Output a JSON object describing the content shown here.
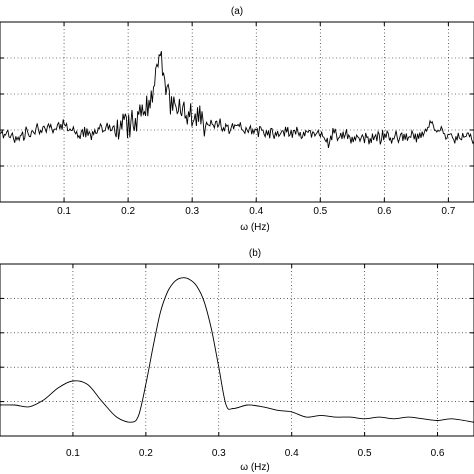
{
  "chart_data": [
    {
      "type": "line",
      "title": "(a)",
      "xlabel": "ω (Hz)",
      "ylabel": "",
      "xlim": [
        0.0,
        0.74
      ],
      "ylim": [
        0,
        5
      ],
      "x_ticks": [
        0.1,
        0.2,
        0.3,
        0.4,
        0.5,
        0.6,
        0.7
      ],
      "x_tick_labels": [
        "0.1",
        "0.2",
        "0.3",
        "0.4",
        "0.5",
        "0.6",
        "0.7"
      ],
      "y_ticks": [
        1,
        2,
        3,
        4
      ],
      "grid": true,
      "series": [
        {
          "values_description_free": true,
          "x": [
            0.0,
            0.02,
            0.04,
            0.06,
            0.08,
            0.09,
            0.1,
            0.11,
            0.12,
            0.14,
            0.16,
            0.18,
            0.2,
            0.21,
            0.22,
            0.23,
            0.24,
            0.245,
            0.25,
            0.255,
            0.26,
            0.27,
            0.28,
            0.3,
            0.32,
            0.35,
            0.4,
            0.45,
            0.5,
            0.515,
            0.52,
            0.55,
            0.6,
            0.65,
            0.665,
            0.67,
            0.7,
            0.74
          ],
          "y": [
            1.9,
            1.8,
            1.9,
            2.0,
            2.0,
            2.1,
            2.2,
            2.0,
            1.9,
            1.9,
            2.0,
            2.0,
            2.2,
            2.3,
            2.5,
            2.8,
            3.2,
            3.6,
            4.0,
            3.5,
            3.0,
            2.7,
            2.5,
            2.3,
            2.2,
            2.1,
            2.0,
            1.9,
            1.9,
            1.6,
            1.9,
            1.8,
            1.8,
            1.8,
            1.9,
            2.2,
            1.8,
            1.8
          ]
        }
      ]
    },
    {
      "type": "line",
      "title": "(b)",
      "xlabel": "ω (Hz)",
      "ylabel": "",
      "xlim": [
        0.0,
        0.65
      ],
      "ylim": [
        0,
        5
      ],
      "x_ticks": [
        0.1,
        0.2,
        0.3,
        0.4,
        0.5,
        0.6
      ],
      "x_tick_labels": [
        "0.1",
        "0.2",
        "0.3",
        "0.4",
        "0.5",
        "0.6"
      ],
      "y_ticks": [
        1,
        2,
        3,
        4
      ],
      "grid": true,
      "series": [
        {
          "x": [
            0.0,
            0.02,
            0.04,
            0.06,
            0.08,
            0.1,
            0.12,
            0.14,
            0.16,
            0.18,
            0.19,
            0.2,
            0.21,
            0.22,
            0.23,
            0.24,
            0.25,
            0.26,
            0.27,
            0.28,
            0.29,
            0.3,
            0.31,
            0.32,
            0.34,
            0.36,
            0.38,
            0.4,
            0.42,
            0.44,
            0.46,
            0.48,
            0.5,
            0.52,
            0.54,
            0.56,
            0.58,
            0.6,
            0.62,
            0.65
          ],
          "y": [
            0.9,
            0.9,
            0.85,
            1.05,
            1.4,
            1.6,
            1.5,
            1.0,
            0.55,
            0.4,
            0.6,
            1.5,
            2.6,
            3.6,
            4.2,
            4.5,
            4.6,
            4.55,
            4.35,
            3.9,
            3.1,
            2.0,
            0.9,
            0.8,
            0.9,
            0.85,
            0.75,
            0.7,
            0.55,
            0.6,
            0.55,
            0.55,
            0.5,
            0.55,
            0.5,
            0.55,
            0.5,
            0.45,
            0.5,
            0.4
          ]
        }
      ]
    }
  ]
}
